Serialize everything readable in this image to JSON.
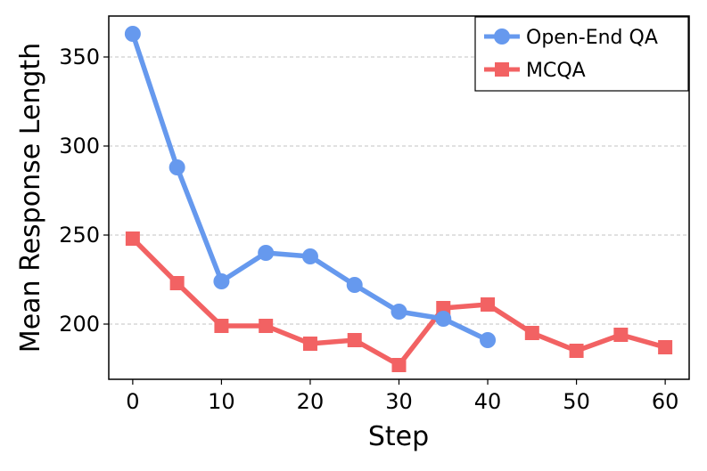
{
  "chart_data": {
    "type": "line",
    "xlabel": "Step",
    "ylabel": "Mean Response Length",
    "xlim": [
      -2.7,
      62.7
    ],
    "ylim": [
      169,
      373
    ],
    "xticks": [
      0,
      10,
      20,
      30,
      40,
      50,
      60
    ],
    "yticks": [
      200,
      250,
      300,
      350
    ],
    "grid": "horizontal dashed",
    "legend_position": "top-right",
    "series": [
      {
        "name": "Open-End QA",
        "color": "#6699ee",
        "marker": "circle",
        "points": [
          {
            "x": 0,
            "y": 363
          },
          {
            "x": 5,
            "y": 288
          },
          {
            "x": 10,
            "y": 224
          },
          {
            "x": 15,
            "y": 240
          },
          {
            "x": 20,
            "y": 238
          },
          {
            "x": 25,
            "y": 222
          },
          {
            "x": 30,
            "y": 207
          },
          {
            "x": 35,
            "y": 203
          },
          {
            "x": 40,
            "y": 191
          }
        ]
      },
      {
        "name": "MCQA",
        "color": "#f26263",
        "marker": "square",
        "points": [
          {
            "x": 0,
            "y": 248
          },
          {
            "x": 5,
            "y": 223
          },
          {
            "x": 10,
            "y": 199
          },
          {
            "x": 15,
            "y": 199
          },
          {
            "x": 20,
            "y": 189
          },
          {
            "x": 25,
            "y": 191
          },
          {
            "x": 30,
            "y": 177
          },
          {
            "x": 35,
            "y": 209
          },
          {
            "x": 40,
            "y": 211
          },
          {
            "x": 45,
            "y": 195
          },
          {
            "x": 50,
            "y": 185
          },
          {
            "x": 55,
            "y": 194
          },
          {
            "x": 60,
            "y": 187
          }
        ]
      }
    ]
  }
}
